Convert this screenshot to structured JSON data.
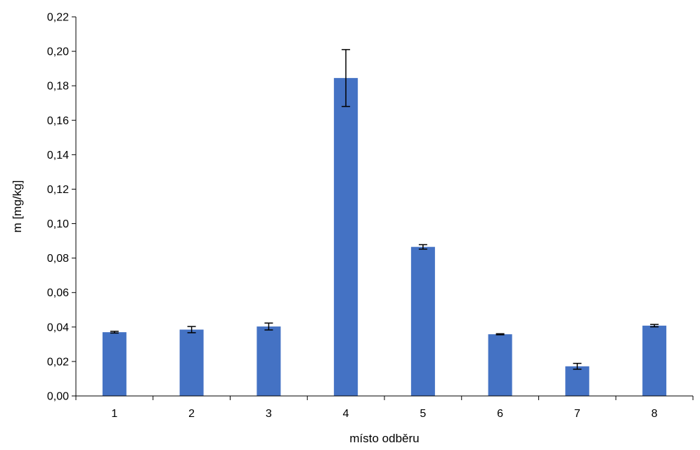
{
  "chart_data": {
    "type": "bar",
    "title": "",
    "xlabel": "místo odběru",
    "ylabel": "m [mg/kg]",
    "categories": [
      "1",
      "2",
      "3",
      "4",
      "5",
      "6",
      "7",
      "8"
    ],
    "values": [
      0.037,
      0.0385,
      0.0403,
      0.1845,
      0.0865,
      0.0358,
      0.0172,
      0.0408
    ],
    "errors": [
      0.0005,
      0.0018,
      0.002,
      0.0165,
      0.0013,
      0.0003,
      0.0017,
      0.0007
    ],
    "ylim": [
      0,
      0.22
    ],
    "yticks": [
      "0,00",
      "0,02",
      "0,04",
      "0,06",
      "0,08",
      "0,10",
      "0,12",
      "0,14",
      "0,16",
      "0,18",
      "0,20",
      "0,22"
    ],
    "ytick_values": [
      0,
      0.02,
      0.04,
      0.06,
      0.08,
      0.1,
      0.12,
      0.14,
      0.16,
      0.18,
      0.2,
      0.22
    ],
    "grid": false,
    "legend": "none",
    "bar_color": "#4472C4"
  }
}
